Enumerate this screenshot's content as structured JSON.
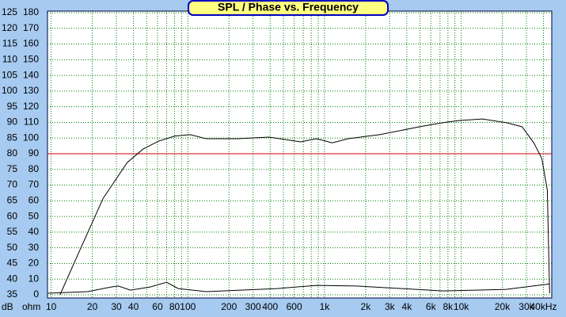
{
  "chart_data": {
    "type": "line",
    "title": "SPL / Phase vs. Frequency",
    "y_label": "dB",
    "y2_label": "ohm",
    "log_x": true,
    "grid": true,
    "grid_color": "#008000",
    "xlim": [
      9.4,
      46000
    ],
    "xticks": [
      10,
      20,
      30,
      40,
      60,
      80,
      100,
      200,
      300,
      400,
      600,
      {
        "value": 1000,
        "label": "1k"
      },
      {
        "value": 2000,
        "label": "2k"
      },
      {
        "value": 3000,
        "label": "3k"
      },
      {
        "value": 4000,
        "label": "4k"
      },
      {
        "value": 6000,
        "label": "6k"
      },
      {
        "value": 8000,
        "label": "8k"
      },
      {
        "value": 10000,
        "label": "10k"
      },
      {
        "value": 20000,
        "label": "20k"
      },
      {
        "value": 30000,
        "label": "30k"
      },
      {
        "value": 40000,
        "label": "40kHz"
      }
    ],
    "xminor": [
      50,
      70,
      90,
      500,
      700,
      800,
      900,
      5000,
      7000,
      9000
    ],
    "ylim": [
      35,
      125
    ],
    "yticks": [
      35,
      40,
      45,
      50,
      55,
      60,
      65,
      70,
      75,
      80,
      85,
      90,
      95,
      100,
      105,
      110,
      115,
      120,
      125
    ],
    "y2lim": [
      0,
      180
    ],
    "y2ticks": [
      0,
      10,
      20,
      30,
      40,
      50,
      60,
      70,
      80,
      90,
      100,
      110,
      120,
      130,
      140,
      150,
      160,
      170,
      180
    ],
    "hline": 80,
    "hline_color": "#d00000",
    "series": [
      {
        "color": "#000000",
        "x": [
          11.6,
          16,
          24,
          36,
          47,
          61,
          80,
          104,
          136,
          231,
          394,
          671,
          875,
          1140,
          1490,
          2540,
          4940,
          7370,
          9610,
          14300,
          21400,
          27900,
          34000,
          38900,
          42700,
          44400
        ],
        "values": [
          35,
          48.7,
          65.8,
          77.2,
          81.5,
          84,
          85.6,
          86.1,
          84.8,
          84.8,
          85.3,
          83.8,
          84.8,
          83.5,
          84.8,
          86.1,
          88.6,
          89.9,
          90.6,
          91.1,
          89.9,
          88.6,
          83.5,
          78.5,
          68.4,
          35.5
        ]
      },
      {
        "color": "#000000",
        "axis": "y2",
        "x": [
          9.5,
          18.5,
          27.5,
          31,
          38,
          53,
          70,
          85,
          136,
          450,
          875,
          1700,
          7370,
          21400,
          44400
        ],
        "values": [
          1,
          2,
          5,
          5.6,
          3,
          5,
          8,
          4,
          2,
          4,
          6,
          5.6,
          2.5,
          3.5,
          7
        ]
      }
    ]
  }
}
